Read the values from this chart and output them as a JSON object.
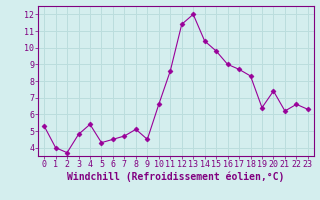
{
  "x": [
    0,
    1,
    2,
    3,
    4,
    5,
    6,
    7,
    8,
    9,
    10,
    11,
    12,
    13,
    14,
    15,
    16,
    17,
    18,
    19,
    20,
    21,
    22,
    23
  ],
  "y": [
    5.3,
    4.0,
    3.7,
    4.8,
    5.4,
    4.3,
    4.5,
    4.7,
    5.1,
    4.5,
    6.6,
    8.6,
    11.4,
    12.0,
    10.4,
    9.8,
    9.0,
    8.7,
    8.3,
    6.4,
    7.4,
    6.2,
    6.6,
    6.3
  ],
  "line_color": "#990099",
  "marker": "D",
  "marker_size": 2.5,
  "bg_color": "#d4eeee",
  "grid_color": "#bbdddd",
  "xlabel": "Windchill (Refroidissement éolien,°C)",
  "xlabel_color": "#800080",
  "tick_color": "#800080",
  "spine_color": "#800080",
  "ylim": [
    3.5,
    12.5
  ],
  "xlim": [
    -0.5,
    23.5
  ],
  "yticks": [
    4,
    5,
    6,
    7,
    8,
    9,
    10,
    11,
    12
  ],
  "xticks": [
    0,
    1,
    2,
    3,
    4,
    5,
    6,
    7,
    8,
    9,
    10,
    11,
    12,
    13,
    14,
    15,
    16,
    17,
    18,
    19,
    20,
    21,
    22,
    23
  ],
  "tick_fontsize": 6,
  "label_fontsize": 7
}
